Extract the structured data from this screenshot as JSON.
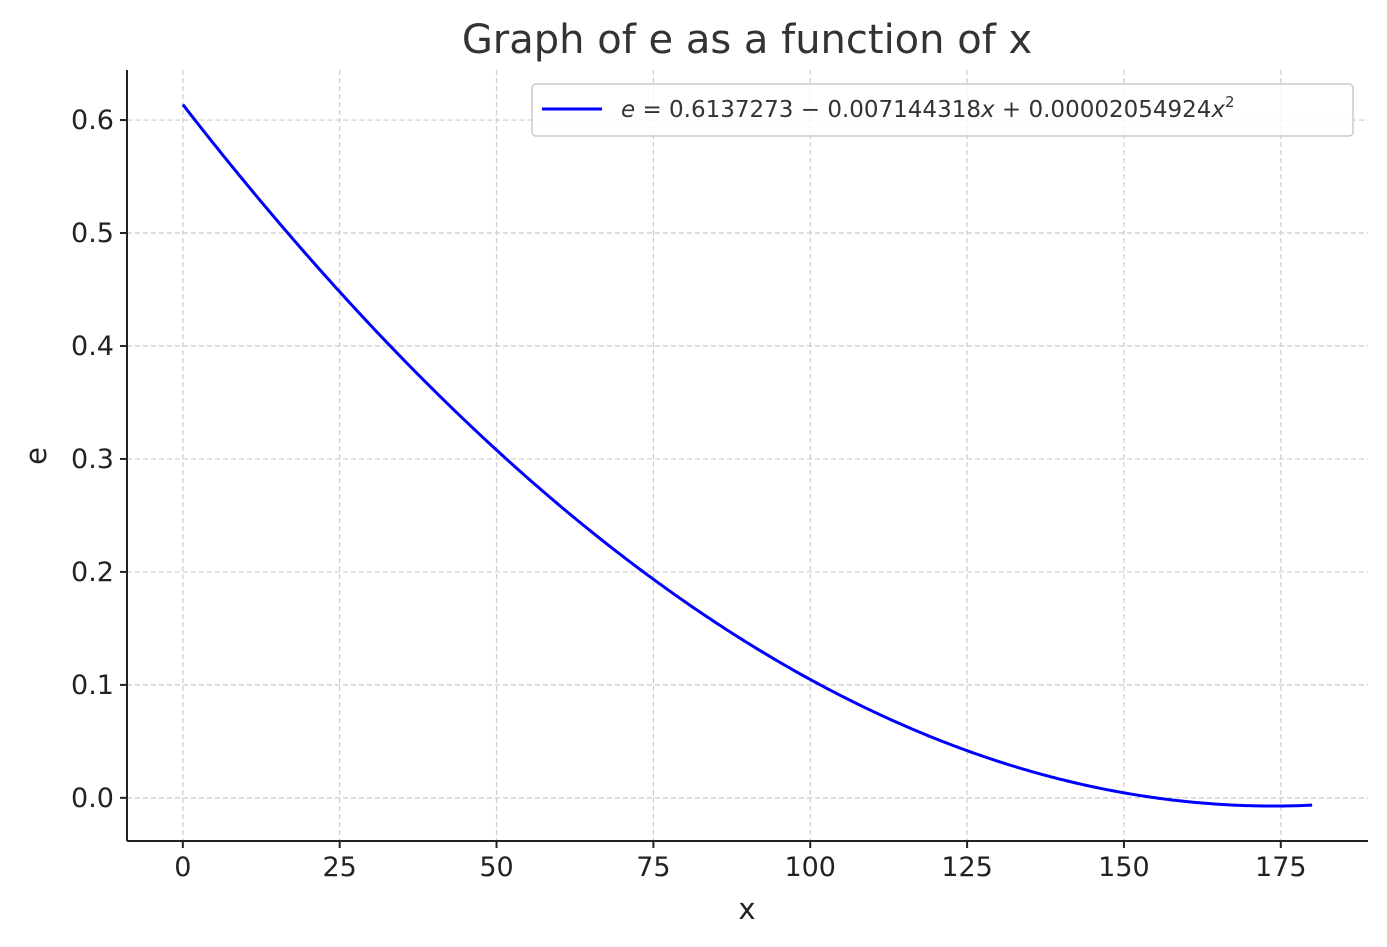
{
  "chart_data": {
    "type": "line",
    "title": "Graph of e as a function of x",
    "xlabel": "x",
    "ylabel": "e",
    "xlim": [
      -8.9,
      188.9
    ],
    "ylim": [
      -0.0382,
      0.6443
    ],
    "xticks": [
      0,
      25,
      50,
      75,
      100,
      125,
      150,
      175
    ],
    "xtick_labels": [
      "0",
      "25",
      "50",
      "75",
      "100",
      "125",
      "150",
      "175"
    ],
    "yticks": [
      0.0,
      0.1,
      0.2,
      0.3,
      0.4,
      0.5,
      0.6
    ],
    "ytick_labels": [
      "0.0",
      "0.1",
      "0.2",
      "0.3",
      "0.4",
      "0.5",
      "0.6"
    ],
    "grid": true,
    "legend_position": "top-right",
    "series": [
      {
        "name": "e = 0.6137273 − 0.007144318x + 0.00002054924x²",
        "color": "#0000ff",
        "function": {
          "c0": 0.6137273,
          "c1": -0.007144318,
          "c2": 2.054924e-05
        },
        "x_range": [
          0,
          180
        ]
      }
    ],
    "legend": {
      "lhs": "e",
      "eq": " = 0.6137273 − 0.007144318",
      "x1": "x",
      "mid": " + 0.00002054924",
      "x2": "x",
      "sup": "2"
    }
  }
}
